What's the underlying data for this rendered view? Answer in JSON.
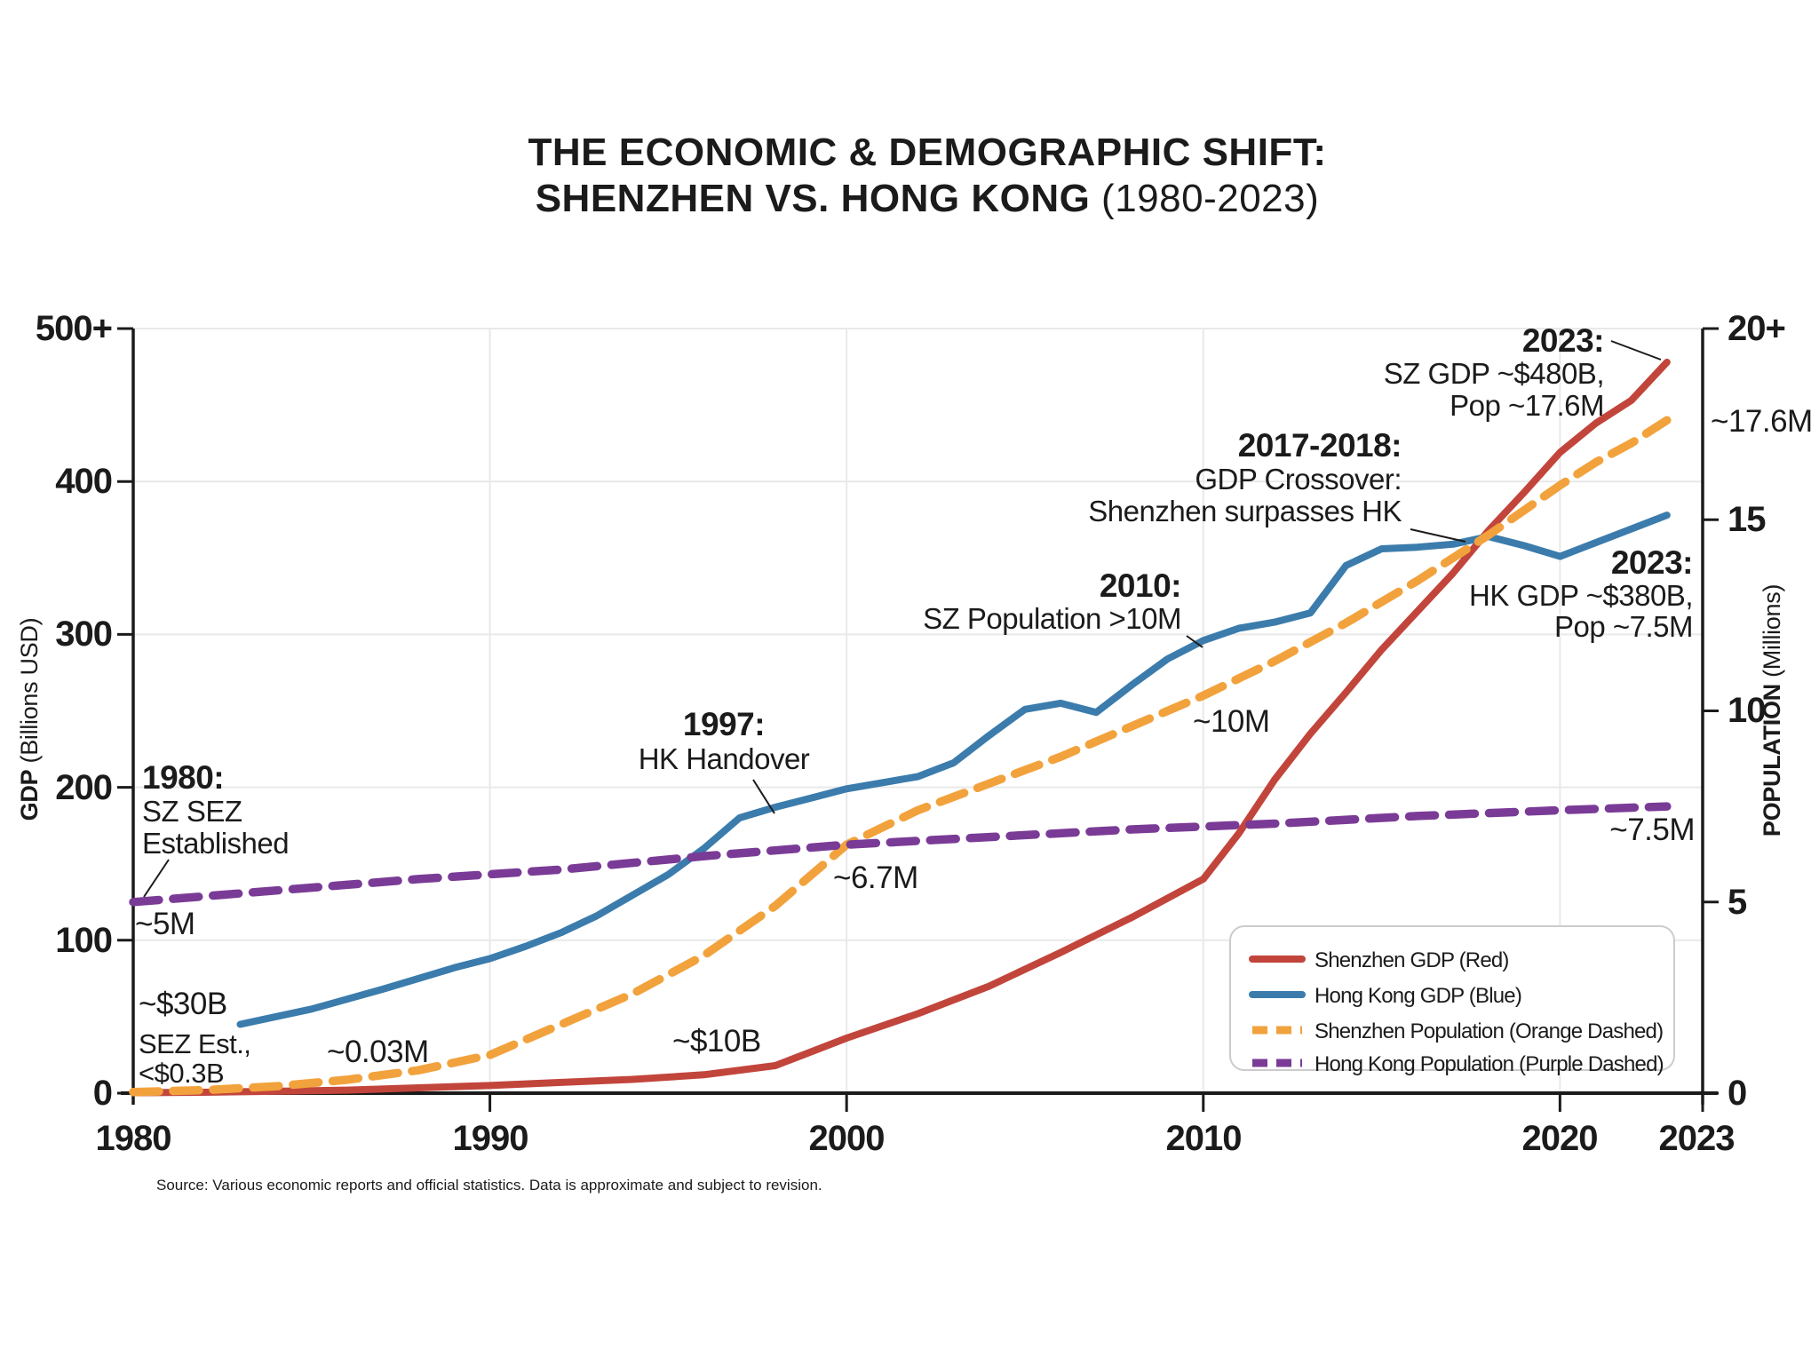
{
  "title": {
    "line1": "THE ECONOMIC & DEMOGRAPHIC SHIFT:",
    "line2_bold": "SHENZHEN VS. HONG KONG",
    "line2_regular": " (1980-2023)"
  },
  "source": "Source: Various economic reports and official statistics. Data is approximate and subject to revision.",
  "axes": {
    "gdp": {
      "title_bold": "GDP",
      "title_regular": " (Billions USD)",
      "ticks": [
        "500+",
        "400",
        "300",
        "200",
        "100",
        "0"
      ]
    },
    "population": {
      "title_bold": "POPULATION",
      "title_regular": " (Millions)",
      "ticks": [
        "20+",
        "15",
        "10",
        "5",
        "0"
      ]
    },
    "x": {
      "ticks": [
        "1980",
        "1990",
        "2000",
        "2010",
        "2020",
        "2023"
      ]
    }
  },
  "annotations": {
    "sez_1980": {
      "year": "1980:",
      "line1": "SZ SEZ",
      "line2": "Established"
    },
    "hk_pop_start": "~5M",
    "hk_gdp_start": "~$30B",
    "sz_gdp_start_1": "SEZ Est.,",
    "sz_gdp_start_2": "<$0.3B",
    "sz_pop_start": "~0.03M",
    "sz_gdp_1997": "~$10B",
    "handover_1997": {
      "year": "1997:",
      "line1": "HK Handover"
    },
    "sz_pop_2010": {
      "year": "2010:",
      "line1": "SZ Population >10M"
    },
    "sz_pop_mid": "~10M",
    "pop_cross_mid": "~6.7M",
    "crossover": {
      "year": "2017-2018:",
      "line1": "GDP Crossover:",
      "line2": "Shenzhen surpasses HK"
    },
    "sz_2023": {
      "year": "2023:",
      "line1": "SZ GDP ~$480B,",
      "line2": "Pop ~17.6M"
    },
    "hk_2023": {
      "year": "2023:",
      "line1": "HK GDP ~$380B,",
      "line2": "Pop ~7.5M"
    },
    "sz_pop_end": "~17.6M",
    "hk_pop_end": "~7.5M"
  },
  "legend": {
    "items": [
      {
        "label": "Shenzhen GDP (Red)",
        "color": "#C2453C",
        "dashed": false
      },
      {
        "label": "Hong Kong GDP (Blue)",
        "color": "#3B7CAC",
        "dashed": false
      },
      {
        "label": "Shenzhen Population (Orange Dashed)",
        "color": "#F2A23C",
        "dashed": true
      },
      {
        "label": "Hong Kong Population (Purple Dashed)",
        "color": "#7A3B96",
        "dashed": true
      }
    ]
  },
  "colors": {
    "shenzhen_gdp": "#C2453C",
    "hong_kong_gdp": "#3B7CAC",
    "shenzhen_population": "#F2A23C",
    "hong_kong_population": "#7A3B96",
    "axis": "#1b1b1b",
    "grid": "#e9e9e9"
  },
  "chart_data": {
    "type": "line",
    "title": "THE ECONOMIC & DEMOGRAPHIC SHIFT: SHENZHEN VS. HONG KONG (1980-2023)",
    "x_range": [
      1980,
      2023
    ],
    "y_left": {
      "label": "GDP (Billions USD)",
      "range": [
        0,
        500
      ]
    },
    "y_right": {
      "label": "POPULATION (Millions)",
      "range": [
        0,
        20
      ]
    },
    "grid": {
      "x_lines": [
        1990,
        2000,
        2010,
        2020
      ],
      "y_lines_gdp": [
        100,
        200,
        300,
        400,
        500
      ]
    },
    "legend_position": "bottom-right",
    "series": [
      {
        "id": "shenzhen-gdp",
        "name": "Shenzhen GDP (Red)",
        "axis": "gdp",
        "units": "billions USD",
        "color": "#C2453C",
        "dashed": false,
        "points": [
          [
            1980,
            0.3
          ],
          [
            1982,
            0.6
          ],
          [
            1984,
            1.2
          ],
          [
            1986,
            2
          ],
          [
            1988,
            3.5
          ],
          [
            1990,
            5
          ],
          [
            1992,
            7
          ],
          [
            1994,
            9
          ],
          [
            1996,
            12
          ],
          [
            1998,
            18
          ],
          [
            2000,
            36
          ],
          [
            2002,
            52
          ],
          [
            2004,
            70
          ],
          [
            2006,
            92
          ],
          [
            2008,
            115
          ],
          [
            2010,
            140
          ],
          [
            2011,
            170
          ],
          [
            2012,
            205
          ],
          [
            2013,
            235
          ],
          [
            2014,
            262
          ],
          [
            2015,
            290
          ],
          [
            2016,
            315
          ],
          [
            2017,
            340
          ],
          [
            2018,
            368
          ],
          [
            2019,
            393
          ],
          [
            2020,
            419
          ],
          [
            2021,
            438
          ],
          [
            2022,
            453
          ],
          [
            2023,
            478
          ]
        ]
      },
      {
        "id": "hong-kong-gdp",
        "name": "Hong Kong GDP (Blue)",
        "axis": "gdp",
        "units": "billions USD",
        "color": "#3B7CAC",
        "dashed": false,
        "points": [
          [
            1983,
            45
          ],
          [
            1985,
            55
          ],
          [
            1987,
            68
          ],
          [
            1989,
            82
          ],
          [
            1990,
            88
          ],
          [
            1991,
            96
          ],
          [
            1992,
            105
          ],
          [
            1993,
            116
          ],
          [
            1995,
            143
          ],
          [
            1996,
            160
          ],
          [
            1997,
            180
          ],
          [
            1998,
            187
          ],
          [
            1999,
            193
          ],
          [
            2000,
            199
          ],
          [
            2001,
            203
          ],
          [
            2002,
            207
          ],
          [
            2003,
            216
          ],
          [
            2004,
            234
          ],
          [
            2005,
            251
          ],
          [
            2006,
            255
          ],
          [
            2007,
            249
          ],
          [
            2008,
            267
          ],
          [
            2009,
            284
          ],
          [
            2010,
            296
          ],
          [
            2011,
            304
          ],
          [
            2012,
            308
          ],
          [
            2013,
            314
          ],
          [
            2014,
            345
          ],
          [
            2015,
            356
          ],
          [
            2016,
            357
          ],
          [
            2017,
            359
          ],
          [
            2018,
            364
          ],
          [
            2019,
            358
          ],
          [
            2020,
            351
          ],
          [
            2021,
            360
          ],
          [
            2022,
            369
          ],
          [
            2023,
            378
          ]
        ]
      },
      {
        "id": "shenzhen-population",
        "name": "Shenzhen Population (Orange Dashed)",
        "axis": "pop",
        "units": "millions",
        "color": "#F2A23C",
        "dashed": true,
        "points": [
          [
            1980,
            0.03
          ],
          [
            1982,
            0.08
          ],
          [
            1984,
            0.18
          ],
          [
            1986,
            0.35
          ],
          [
            1988,
            0.6
          ],
          [
            1990,
            1
          ],
          [
            1992,
            1.8
          ],
          [
            1994,
            2.6
          ],
          [
            1996,
            3.6
          ],
          [
            1998,
            4.9
          ],
          [
            1999,
            5.7
          ],
          [
            2000,
            6.5
          ],
          [
            2002,
            7.4
          ],
          [
            2004,
            8.1
          ],
          [
            2006,
            8.8
          ],
          [
            2008,
            9.6
          ],
          [
            2010,
            10.4
          ],
          [
            2012,
            11.3
          ],
          [
            2014,
            12.3
          ],
          [
            2016,
            13.4
          ],
          [
            2018,
            14.6
          ],
          [
            2020,
            15.9
          ],
          [
            2021,
            16.5
          ],
          [
            2022,
            17
          ],
          [
            2023,
            17.6
          ]
        ]
      },
      {
        "id": "hong-kong-population",
        "name": "Hong Kong Population (Purple Dashed)",
        "axis": "pop",
        "units": "millions",
        "color": "#7A3B96",
        "dashed": true,
        "points": [
          [
            1980,
            5
          ],
          [
            1984,
            5.3
          ],
          [
            1988,
            5.6
          ],
          [
            1992,
            5.85
          ],
          [
            1996,
            6.2
          ],
          [
            2000,
            6.5
          ],
          [
            2004,
            6.7
          ],
          [
            2008,
            6.9
          ],
          [
            2012,
            7.05
          ],
          [
            2016,
            7.25
          ],
          [
            2020,
            7.4
          ],
          [
            2023,
            7.5
          ]
        ]
      }
    ]
  }
}
